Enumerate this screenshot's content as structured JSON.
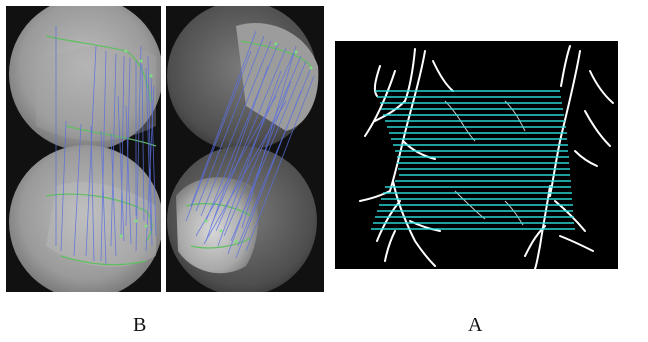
{
  "figure": {
    "label_b": "B",
    "label_a": "A"
  }
}
